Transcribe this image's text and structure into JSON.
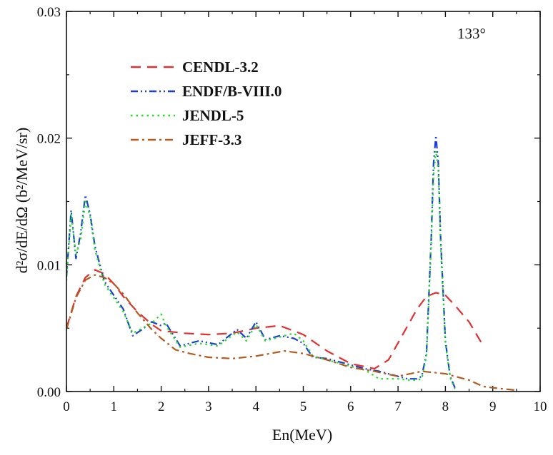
{
  "chart_data": {
    "type": "line",
    "title": "",
    "annotation": "133°",
    "xlabel": "En(MeV)",
    "ylabel": "d²σ/dE/dΩ (b²/MeV/sr)",
    "xlim": [
      0,
      10
    ],
    "ylim": [
      0,
      0.03
    ],
    "x_ticks": [
      0,
      1,
      2,
      3,
      4,
      5,
      6,
      7,
      8,
      9,
      10
    ],
    "x_tick_labels": [
      "0",
      "1",
      "2",
      "3",
      "4",
      "5",
      "6",
      "7",
      "8",
      "9",
      "10"
    ],
    "y_ticks": [
      0,
      0.01,
      0.02,
      0.03
    ],
    "y_tick_labels": [
      "0.00",
      "0.01",
      "0.02",
      "0.03"
    ],
    "legend_position": "top-left",
    "series": [
      {
        "name": "CENDL-3.2",
        "color": "#e03030",
        "dash": "dash",
        "x": [
          0,
          0.2,
          0.4,
          0.6,
          0.8,
          1.0,
          1.2,
          1.5,
          1.8,
          2.0,
          2.5,
          3.0,
          3.5,
          4.0,
          4.5,
          5.0,
          5.5,
          6.0,
          6.5,
          6.8,
          7.1,
          7.4,
          7.6,
          7.8,
          8.0,
          8.2,
          8.5,
          8.8
        ],
        "y": [
          0.005,
          0.0075,
          0.009,
          0.0096,
          0.0093,
          0.0085,
          0.0075,
          0.0063,
          0.0053,
          0.0048,
          0.0046,
          0.0045,
          0.0046,
          0.005,
          0.0052,
          0.0045,
          0.0032,
          0.0022,
          0.0018,
          0.0025,
          0.0045,
          0.0065,
          0.0075,
          0.0078,
          0.0076,
          0.0068,
          0.0055,
          0.0036
        ]
      },
      {
        "name": "ENDF/B-VIII.0",
        "color": "#1a3fd6",
        "dash": "dashdotdot",
        "x": [
          0,
          0.1,
          0.2,
          0.3,
          0.4,
          0.5,
          0.6,
          0.8,
          1.0,
          1.2,
          1.4,
          1.6,
          1.8,
          2.0,
          2.1,
          2.4,
          2.8,
          3.2,
          3.6,
          3.8,
          4.0,
          4.2,
          4.5,
          4.8,
          5.0,
          5.2,
          5.5,
          5.8,
          6.0,
          6.3,
          6.6,
          7.0,
          7.2,
          7.4,
          7.5,
          7.6,
          7.7,
          7.75,
          7.8,
          7.85,
          7.9,
          8.0,
          8.1,
          8.2
        ],
        "y": [
          0.009,
          0.0143,
          0.0105,
          0.0125,
          0.0155,
          0.014,
          0.0115,
          0.0087,
          0.0076,
          0.0065,
          0.0044,
          0.0049,
          0.0055,
          0.0052,
          0.0054,
          0.0036,
          0.004,
          0.0037,
          0.0049,
          0.0042,
          0.0055,
          0.0041,
          0.0044,
          0.0042,
          0.0038,
          0.0027,
          0.0026,
          0.0023,
          0.0021,
          0.0018,
          0.0016,
          0.0012,
          0.001,
          0.001,
          0.0012,
          0.003,
          0.012,
          0.018,
          0.0202,
          0.018,
          0.012,
          0.004,
          0.0012,
          0.0003
        ]
      },
      {
        "name": "JENDL-5",
        "color": "#22dd22",
        "dash": "dot",
        "x": [
          0,
          0.1,
          0.2,
          0.3,
          0.4,
          0.5,
          0.6,
          0.8,
          1.0,
          1.2,
          1.4,
          1.6,
          1.8,
          2.0,
          2.1,
          2.4,
          2.8,
          3.2,
          3.6,
          3.8,
          4.0,
          4.2,
          4.5,
          4.8,
          5.0,
          5.2,
          5.5,
          5.8,
          6.0,
          6.3,
          6.6,
          7.0,
          7.2,
          7.4,
          7.5,
          7.6,
          7.7,
          7.75,
          7.8,
          7.85,
          7.9,
          8.0,
          8.1,
          8.2
        ],
        "y": [
          0.0088,
          0.014,
          0.0108,
          0.012,
          0.015,
          0.0138,
          0.0112,
          0.0085,
          0.0074,
          0.0063,
          0.0046,
          0.005,
          0.0054,
          0.0061,
          0.0052,
          0.0035,
          0.0038,
          0.0036,
          0.0047,
          0.004,
          0.0053,
          0.004,
          0.0043,
          0.0046,
          0.004,
          0.0028,
          0.0025,
          0.0022,
          0.002,
          0.0017,
          0.001,
          0.001,
          0.0009,
          0.0009,
          0.001,
          0.0028,
          0.0115,
          0.017,
          0.019,
          0.0175,
          0.0115,
          0.0038,
          0.0011,
          0.0002
        ]
      },
      {
        "name": "JEFF-3.3",
        "color": "#b35a1f",
        "dash": "dashdot",
        "x": [
          0,
          0.2,
          0.4,
          0.6,
          0.8,
          1.0,
          1.2,
          1.5,
          1.8,
          2.0,
          2.3,
          2.6,
          3.0,
          3.5,
          4.0,
          4.3,
          4.6,
          5.0,
          5.5,
          6.0,
          6.5,
          7.0,
          7.5,
          8.0,
          8.5,
          8.8,
          9.0,
          9.5
        ],
        "y": [
          0.0049,
          0.0074,
          0.0088,
          0.0092,
          0.009,
          0.0085,
          0.0077,
          0.0062,
          0.0049,
          0.0042,
          0.0033,
          0.003,
          0.0027,
          0.0026,
          0.0028,
          0.003,
          0.0032,
          0.003,
          0.0025,
          0.0019,
          0.0016,
          0.0012,
          0.0016,
          0.0014,
          0.0009,
          0.0004,
          0.0003,
          0.0001
        ]
      }
    ]
  }
}
